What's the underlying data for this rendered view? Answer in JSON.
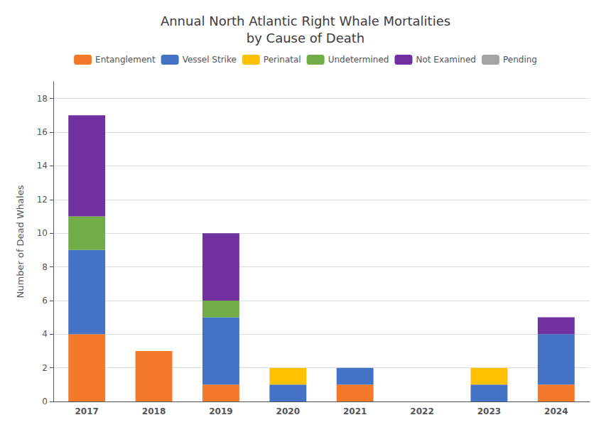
{
  "chart_data": {
    "type": "bar",
    "title": "Annual North Atlantic Right Whale Mortalities\nby Cause of Death",
    "ylabel": "Number of Dead Whales",
    "categories": [
      "2017",
      "2018",
      "2019",
      "2020",
      "2021",
      "2022",
      "2023",
      "2024"
    ],
    "series": [
      {
        "name": "Entanglement",
        "color": "#F4792B",
        "values": [
          4,
          3,
          1,
          0,
          1,
          0,
          0,
          1
        ]
      },
      {
        "name": "Vessel Strike",
        "color": "#4472C4",
        "values": [
          5,
          0,
          4,
          1,
          1,
          0,
          1,
          3
        ]
      },
      {
        "name": "Perinatal",
        "color": "#FFC000",
        "values": [
          0,
          0,
          0,
          1,
          0,
          0,
          1,
          0
        ]
      },
      {
        "name": "Undetermined",
        "color": "#70AD47",
        "values": [
          2,
          0,
          1,
          0,
          0,
          0,
          0,
          0
        ]
      },
      {
        "name": "Not Examined",
        "color": "#7030A0",
        "values": [
          6,
          0,
          4,
          0,
          0,
          0,
          0,
          1
        ]
      },
      {
        "name": "Pending",
        "color": "#A5A5A5",
        "values": [
          0,
          0,
          0,
          0,
          0,
          0,
          0,
          0
        ]
      }
    ],
    "stacked": true,
    "ylim": [
      0,
      19
    ],
    "yticks": [
      0,
      2,
      4,
      6,
      8,
      10,
      12,
      14,
      16,
      18
    ],
    "grid": true,
    "legend": "top"
  }
}
